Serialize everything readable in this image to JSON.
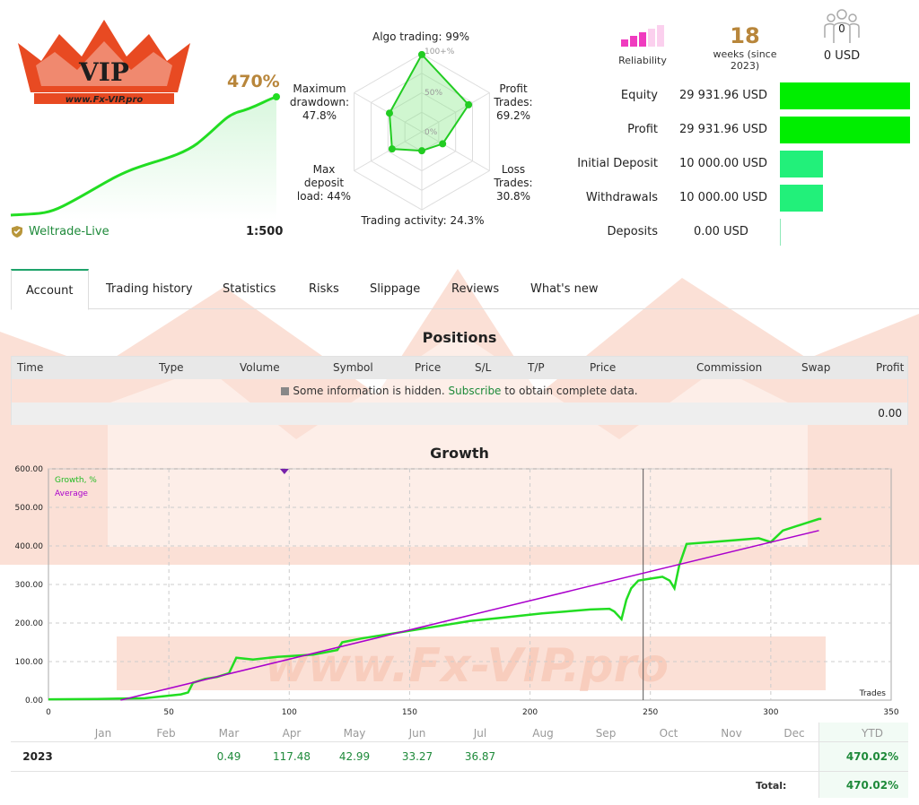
{
  "logo": {
    "text": "VIP",
    "site": "www.Fx-VIP.pro"
  },
  "watermark": {
    "site": "www.Fx-VIP.pro"
  },
  "account": {
    "growth_pct": "470%",
    "broker": "Weltrade-Live",
    "leverage": "1:500"
  },
  "radar": {
    "labels": {
      "algo": "Algo trading: 99%",
      "profit": "Profit Trades: 69.2%",
      "loss": "Loss Trades: 30.8%",
      "activity": "Trading activity: 24.3%",
      "deposit_load": "Max deposit load: 44%",
      "drawdown": "Maximum drawdown: 47.8%"
    },
    "rings": [
      "100+%",
      "50%",
      "0%"
    ],
    "values": [
      0.99,
      0.692,
      0.308,
      0.243,
      0.44,
      0.478
    ]
  },
  "reliability": {
    "label": "Reliability",
    "bars_active": 3,
    "bars_total": 5
  },
  "weeks": {
    "value": "18",
    "label": "weeks (since 2023)"
  },
  "subscribers": {
    "count": "0",
    "label": "0 USD"
  },
  "stats": [
    {
      "name": "Equity",
      "value": "29 931.96 USD",
      "fraction": 1.0,
      "color": "#00ee00"
    },
    {
      "name": "Profit",
      "value": "29 931.96 USD",
      "fraction": 1.0,
      "color": "#00ee00"
    },
    {
      "name": "Initial Deposit",
      "value": "10 000.00 USD",
      "fraction": 0.334,
      "color": "#22f07a"
    },
    {
      "name": "Withdrawals",
      "value": "10 000.00 USD",
      "fraction": 0.334,
      "color": "#22f07a"
    },
    {
      "name": "Deposits",
      "value": "0.00 USD",
      "fraction": 0.0,
      "color": "#22f07a"
    }
  ],
  "tabs": [
    "Account",
    "Trading history",
    "Statistics",
    "Risks",
    "Slippage",
    "Reviews",
    "What's new"
  ],
  "positions": {
    "title": "Positions",
    "columns": [
      "Time",
      "Type",
      "Volume",
      "Symbol",
      "Price",
      "S/L",
      "T/P",
      "Price",
      "Commission",
      "Swap",
      "Profit"
    ],
    "info_before": "Some information is hidden.",
    "info_link": "Subscribe",
    "info_after": "to obtain complete data.",
    "total": "0.00"
  },
  "growth": {
    "title": "Growth",
    "legend_growth": "Growth, %",
    "legend_average": "Average",
    "x_label": "Trades"
  },
  "chart_data": {
    "type": "line",
    "title": "Growth",
    "xlabel": "Trades",
    "ylabel": "",
    "xlim": [
      0,
      350
    ],
    "ylim": [
      0,
      600
    ],
    "x_ticks": [
      0,
      50,
      100,
      150,
      200,
      250,
      300,
      350
    ],
    "y_ticks": [
      "0.00",
      "100.00",
      "200.00",
      "300.00",
      "400.00",
      "500.00",
      "600.00"
    ],
    "grid": true,
    "legend": "top-left",
    "series": [
      {
        "name": "Growth, %",
        "color": "#22dd22",
        "x": [
          0,
          20,
          40,
          55,
          58,
          60,
          65,
          70,
          75,
          78,
          85,
          95,
          110,
          120,
          122,
          130,
          145,
          160,
          175,
          190,
          205,
          215,
          225,
          233,
          235,
          238,
          240,
          242,
          245,
          250,
          255,
          258,
          260,
          262,
          265,
          275,
          285,
          295,
          300,
          305,
          315,
          320,
          321
        ],
        "y": [
          2,
          3,
          5,
          15,
          20,
          45,
          55,
          60,
          70,
          110,
          105,
          112,
          118,
          130,
          150,
          160,
          175,
          190,
          205,
          215,
          225,
          230,
          235,
          237,
          230,
          210,
          260,
          290,
          310,
          315,
          320,
          310,
          290,
          350,
          405,
          410,
          415,
          420,
          410,
          440,
          460,
          470,
          470
        ]
      },
      {
        "name": "Average",
        "color": "#aa00cc",
        "x": [
          30,
          320
        ],
        "y": [
          0,
          440
        ]
      }
    ],
    "markers": [
      {
        "x": 98,
        "label": ""
      }
    ],
    "vline_x": 247
  },
  "monthly": {
    "months": [
      "Jan",
      "Feb",
      "Mar",
      "Apr",
      "May",
      "Jun",
      "Jul",
      "Aug",
      "Sep",
      "Oct",
      "Nov",
      "Dec",
      "YTD"
    ],
    "year": "2023",
    "values": [
      "",
      "",
      "0.49",
      "117.48",
      "42.99",
      "33.27",
      "36.87",
      "",
      "",
      "",
      "",
      "",
      "470.02%"
    ],
    "total_label": "Total:",
    "total_value": "470.02%"
  }
}
